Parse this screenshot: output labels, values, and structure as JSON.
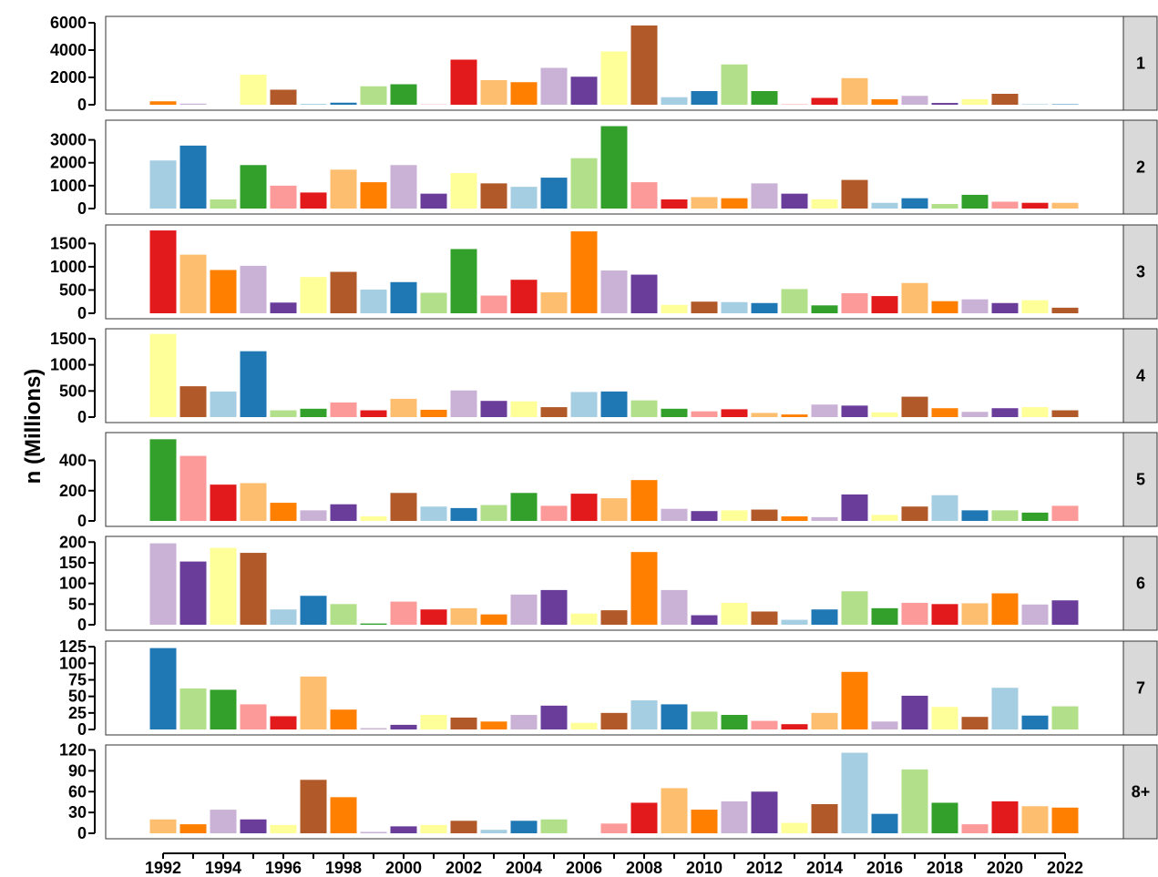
{
  "chart_data": {
    "type": "bar",
    "ylabel": "n (Millions)",
    "xlabel": "",
    "years": [
      1992,
      1993,
      1994,
      1995,
      1996,
      1997,
      1998,
      1999,
      2000,
      2001,
      2002,
      2003,
      2004,
      2005,
      2006,
      2007,
      2008,
      2009,
      2010,
      2011,
      2012,
      2013,
      2014,
      2015,
      2016,
      2017,
      2018,
      2019,
      2020,
      2021,
      2022
    ],
    "x_tick_labels": [
      "1992",
      "1994",
      "1996",
      "1998",
      "2000",
      "2002",
      "2004",
      "2006",
      "2008",
      "2010",
      "2012",
      "2014",
      "2016",
      "2018",
      "2020",
      "2022"
    ],
    "grid": false,
    "palette": [
      "#A6CEE3",
      "#1F78B4",
      "#B2DF8A",
      "#33A02C",
      "#FB9A99",
      "#E31A1C",
      "#FDBF6F",
      "#FF7F00",
      "#CAB2D6",
      "#6A3D9A",
      "#FFFF99",
      "#B15928"
    ],
    "bar_colors": [
      "#FF7F00",
      "#CAB2D6",
      "#6A3D9A",
      "#FFFF99",
      "#B15928",
      "#A6CEE3",
      "#1F78B4",
      "#B2DF8A",
      "#33A02C",
      "#FB9A99",
      "#E31A1C",
      "#FDBF6F",
      "#FF7F00",
      "#CAB2D6",
      "#6A3D9A",
      "#FFFF99",
      "#B15928",
      "#A6CEE3",
      "#1F78B4",
      "#B2DF8A",
      "#33A02C",
      "#FB9A99",
      "#E31A1C",
      "#FDBF6F",
      "#FF7F00",
      "#CAB2D6",
      "#6A3D9A",
      "#FFFF99",
      "#B15928",
      "#A6CEE3",
      "#1F78B4",
      "#B2DF8A",
      "#33A02C",
      "#FB9A99",
      "#E31A1C",
      "#FDBF6F",
      "#FF7F00",
      "#CAB2D6",
      "#6A3D9A",
      "#FFFF99",
      "#B15928"
    ],
    "strip_fill": "#D9D9D9",
    "facets": [
      {
        "label": "1",
        "color_offset": 0,
        "ylim": [
          0,
          6200
        ],
        "yticks": [
          0,
          2000,
          4000,
          6000
        ],
        "values": [
          250,
          80,
          0,
          2200,
          1100,
          60,
          150,
          1350,
          1500,
          20,
          3300,
          1800,
          1650,
          2700,
          2050,
          3900,
          5800,
          550,
          1000,
          2950,
          1000,
          30,
          500,
          1950,
          400,
          650,
          130,
          400,
          800,
          40,
          30
        ]
      },
      {
        "label": "2",
        "color_offset": 5,
        "ylim": [
          0,
          3700
        ],
        "yticks": [
          0,
          1000,
          2000,
          3000
        ],
        "values": [
          2100,
          2750,
          400,
          1900,
          1000,
          700,
          1700,
          1150,
          1900,
          650,
          1550,
          1100,
          950,
          1350,
          2200,
          3600,
          1150,
          400,
          500,
          450,
          1100,
          650,
          400,
          1250,
          250,
          450,
          200,
          600,
          300,
          250,
          250
        ]
      },
      {
        "label": "3",
        "color_offset": 10,
        "ylim": [
          0,
          1820
        ],
        "yticks": [
          0,
          500,
          1000,
          1500
        ],
        "values": [
          1780,
          1260,
          930,
          1020,
          230,
          780,
          890,
          510,
          670,
          440,
          1380,
          380,
          720,
          450,
          1760,
          920,
          830,
          180,
          250,
          240,
          220,
          520,
          170,
          430,
          370,
          650,
          260,
          300,
          220,
          280,
          120
        ]
      },
      {
        "label": "4",
        "color_offset": 15,
        "ylim": [
          0,
          1620
        ],
        "yticks": [
          0,
          500,
          1000,
          1500
        ],
        "values": [
          1590,
          590,
          490,
          1260,
          130,
          160,
          280,
          130,
          350,
          140,
          510,
          310,
          300,
          190,
          480,
          490,
          320,
          160,
          110,
          150,
          80,
          50,
          240,
          220,
          90,
          390,
          170,
          100,
          170,
          190,
          130
        ]
      },
      {
        "label": "5",
        "color_offset": 20,
        "ylim": [
          0,
          560
        ],
        "yticks": [
          0,
          200,
          400
        ],
        "values": [
          540,
          430,
          240,
          250,
          120,
          70,
          110,
          30,
          185,
          95,
          85,
          105,
          185,
          100,
          180,
          150,
          270,
          80,
          65,
          70,
          75,
          30,
          25,
          175,
          40,
          95,
          170,
          70,
          70,
          55,
          100
        ]
      },
      {
        "label": "6",
        "color_offset": 25,
        "ylim": [
          0,
          205
        ],
        "yticks": [
          0,
          50,
          100,
          150,
          200
        ],
        "values": [
          197,
          153,
          186,
          174,
          37,
          70,
          50,
          3,
          56,
          37,
          40,
          25,
          73,
          84,
          27,
          35,
          176,
          84,
          23,
          53,
          32,
          12,
          37,
          81,
          40,
          53,
          50,
          52,
          76,
          49,
          59
        ]
      },
      {
        "label": "7",
        "color_offset": 30,
        "ylim": [
          0,
          128
        ],
        "yticks": [
          0,
          25,
          50,
          75,
          100,
          125
        ],
        "values": [
          123,
          62,
          60,
          38,
          20,
          80,
          30,
          2,
          7,
          22,
          18,
          12,
          22,
          36,
          10,
          25,
          44,
          38,
          27,
          22,
          13,
          8,
          25,
          87,
          12,
          51,
          34,
          19,
          63,
          21,
          35
        ]
      },
      {
        "label": "8+",
        "color_offset": 35,
        "ylim": [
          0,
          122
        ],
        "yticks": [
          0,
          30,
          60,
          90,
          120
        ],
        "values": [
          20,
          13,
          34,
          20,
          12,
          77,
          52,
          2,
          10,
          12,
          18,
          5,
          18,
          20,
          0,
          14,
          44,
          65,
          34,
          46,
          60,
          15,
          42,
          116,
          28,
          92,
          44,
          13,
          46,
          39,
          37
        ]
      }
    ]
  }
}
